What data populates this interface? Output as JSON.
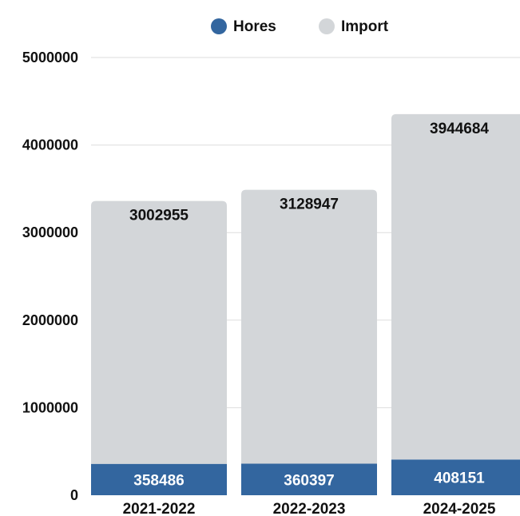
{
  "chart_data": {
    "type": "bar",
    "stacked": true,
    "categories": [
      "2021-2022",
      "2022-2023",
      "2024-2025"
    ],
    "series": [
      {
        "name": "Hores",
        "values": [
          358486,
          360397,
          408151
        ],
        "color": "#33669f"
      },
      {
        "name": "Import",
        "values": [
          3002955,
          3128947,
          3944684
        ],
        "color": "#d3d6d9"
      }
    ],
    "ylim": [
      0,
      5000000
    ],
    "yticks": [
      0,
      1000000,
      2000000,
      3000000,
      4000000,
      5000000
    ],
    "ytick_labels": [
      "0",
      "1000000",
      "2000000",
      "3000000",
      "4000000",
      "5000000"
    ],
    "legend_position": "top-center",
    "grid": true,
    "title": "",
    "xlabel": "",
    "ylabel": ""
  }
}
